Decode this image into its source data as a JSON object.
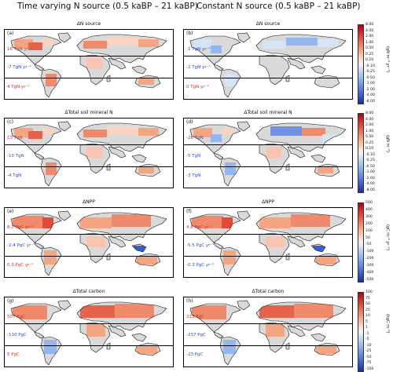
{
  "columns": [
    {
      "title": "Time varying N source (0.5 kaBP – 21 kaBP)"
    },
    {
      "title": "Constant N source (0.5 kaBP – 21 kaBP)"
    }
  ],
  "rows": [
    {
      "title": "ΔN source",
      "units": "(gN m⁻² yr⁻¹)",
      "ticks": [
        "8.00",
        "4.00",
        "2.00",
        "1.00",
        "0.50",
        "0.25",
        "0.10",
        "-0.10",
        "-0.25",
        "-0.50",
        "-1.00",
        "-2.00",
        "-4.00",
        "-8.00"
      ],
      "panels": [
        {
          "label": "(a)",
          "values": [
            {
              "text": "16 TgN yr⁻¹",
              "color": "#d7301f"
            },
            {
              "text": "-7 TgN yr⁻¹",
              "color": "#2b4bcc"
            },
            {
              "text": "4 TgN yr⁻¹",
              "color": "#d7301f"
            }
          ]
        },
        {
          "label": "(b)",
          "values": [
            {
              "text": "-1 TgN yr⁻¹",
              "color": "#2b4bcc"
            },
            {
              "text": "-2 TgN yr⁻¹",
              "color": "#2b4bcc"
            },
            {
              "text": "0 TgN yr⁻¹",
              "color": "#d7301f"
            }
          ]
        }
      ]
    },
    {
      "title": "ΔTotal soil mineral N",
      "units": "(gN m⁻²)",
      "ticks": [
        "8.00",
        "4.00",
        "2.00",
        "1.00",
        "0.50",
        "0.25",
        "0.10",
        "-0.10",
        "-0.25",
        "-0.50",
        "-1.00",
        "-2.00",
        "-4.00",
        "-8.00"
      ],
      "panels": [
        {
          "label": "(c)",
          "values": [
            {
              "text": "13 TgN",
              "color": "#d7301f"
            },
            {
              "text": "-10 TgN",
              "color": "#2b4bcc"
            },
            {
              "text": "-4 TgN",
              "color": "#2b4bcc"
            }
          ]
        },
        {
          "label": "(d)",
          "values": [
            {
              "text": "-26 TgN",
              "color": "#2b4bcc"
            },
            {
              "text": "-5 TgN",
              "color": "#2b4bcc"
            },
            {
              "text": "-3 TgN",
              "color": "#2b4bcc"
            }
          ]
        }
      ]
    },
    {
      "title": "ΔNPP",
      "units": "(gC m⁻² yr⁻¹)",
      "ticks": [
        "500",
        "400",
        "300",
        "200",
        "100",
        "50",
        "-50",
        "-100",
        "-200",
        "-300",
        "-400",
        "-500"
      ],
      "panels": [
        {
          "label": "(e)",
          "values": [
            {
              "text": "8.0 PgC yr⁻¹",
              "color": "#d7301f"
            },
            {
              "text": "-2.4 PgC yr⁻¹",
              "color": "#2b4bcc"
            },
            {
              "text": "0.3 PgC yr⁻¹",
              "color": "#d7301f"
            }
          ]
        },
        {
          "label": "(f)",
          "values": [
            {
              "text": "4.8 PgC yr⁻¹",
              "color": "#d7301f"
            },
            {
              "text": "-5.5 PgC yr⁻¹",
              "color": "#2b4bcc"
            },
            {
              "text": "-0.3 PgC yr⁻¹",
              "color": "#2b4bcc"
            }
          ]
        }
      ]
    },
    {
      "title": "ΔTotal carbon",
      "units": "(kgC m⁻²)",
      "ticks": [
        "100",
        "75",
        "50",
        "25",
        "10",
        "5",
        "1",
        "-1",
        "-5",
        "-10",
        "-25",
        "-50",
        "-75",
        "-100"
      ],
      "panels": [
        {
          "label": "(g)",
          "values": [
            {
              "text": "507 PgC",
              "color": "#d7301f"
            },
            {
              "text": "-110 PgC",
              "color": "#2b4bcc"
            },
            {
              "text": "5 PgC",
              "color": "#d7301f"
            }
          ]
        },
        {
          "label": "(h)",
          "values": [
            {
              "text": "213 PgC",
              "color": "#d7301f"
            },
            {
              "text": "-237 PgC",
              "color": "#2b4bcc"
            },
            {
              "text": "-23 PgC",
              "color": "#2b4bcc"
            }
          ]
        }
      ]
    }
  ]
}
